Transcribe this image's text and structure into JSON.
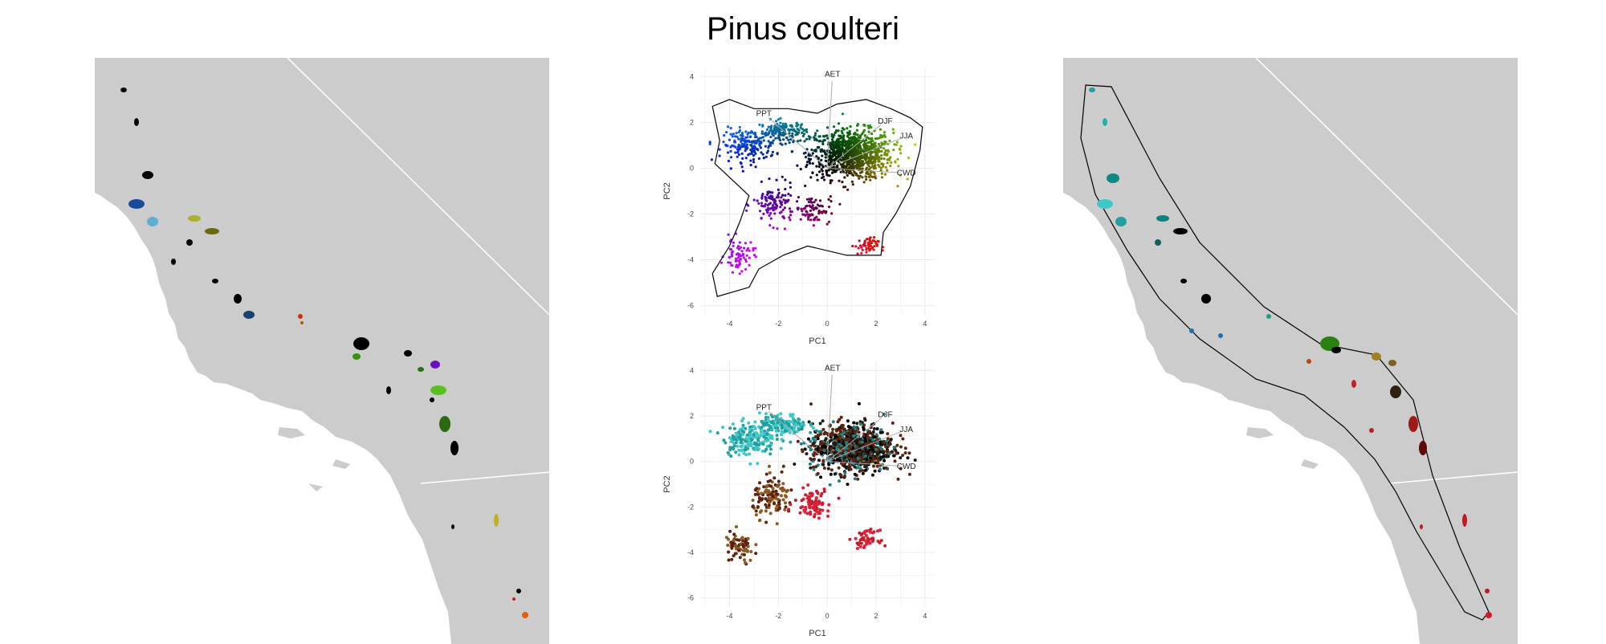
{
  "title": "Pinus coulteri",
  "colors": {
    "land": "#cccccc",
    "sea": "#ffffff",
    "border": "#ffffff",
    "grid": "#ebebeb",
    "hull": "#000000",
    "vector": "#aaaaaa"
  },
  "chart_data": [
    {
      "type": "scatter",
      "panel": "pca-top",
      "xlabel": "PC1",
      "ylabel": "PC2",
      "xlim": [
        -5.2,
        4.4
      ],
      "ylim": [
        -6.4,
        4.4
      ],
      "xticks": [
        -4,
        -2,
        0,
        2,
        4
      ],
      "yticks": [
        -6,
        -4,
        -2,
        0,
        2,
        4
      ],
      "grid": true,
      "loadings": [
        {
          "label": "AET",
          "x": 0.2,
          "y": 3.8
        },
        {
          "label": "PPT",
          "x": -2.4,
          "y": 2.2
        },
        {
          "label": "DJF",
          "x": 2.2,
          "y": 1.9
        },
        {
          "label": "JJA",
          "x": 3.0,
          "y": 1.3
        },
        {
          "label": "CWD",
          "x": 3.0,
          "y": -0.2
        }
      ],
      "color_encoding": "point colour = position in PC space (convex hull outlined)"
    },
    {
      "type": "scatter",
      "panel": "pca-bottom",
      "xlabel": "PC1",
      "ylabel": "PC2",
      "xlim": [
        -5.2,
        4.4
      ],
      "ylim": [
        -6.4,
        4.4
      ],
      "xticks": [
        -4,
        -2,
        0,
        2,
        4
      ],
      "yticks": [
        -6,
        -4,
        -2,
        0,
        2,
        4
      ],
      "grid": true,
      "loadings": [
        {
          "label": "AET",
          "x": 0.2,
          "y": 3.8
        },
        {
          "label": "PPT",
          "x": -2.4,
          "y": 2.2
        },
        {
          "label": "DJF",
          "x": 2.2,
          "y": 1.9
        },
        {
          "label": "JJA",
          "x": 3.0,
          "y": 1.3
        },
        {
          "label": "CWD",
          "x": 3.0,
          "y": -0.2
        }
      ],
      "color_encoding": "point colour = geographic position"
    }
  ],
  "maps": {
    "left": "occurrences coloured by climate (PC space)",
    "right": "occurrences coloured by geography within buffer outline"
  }
}
